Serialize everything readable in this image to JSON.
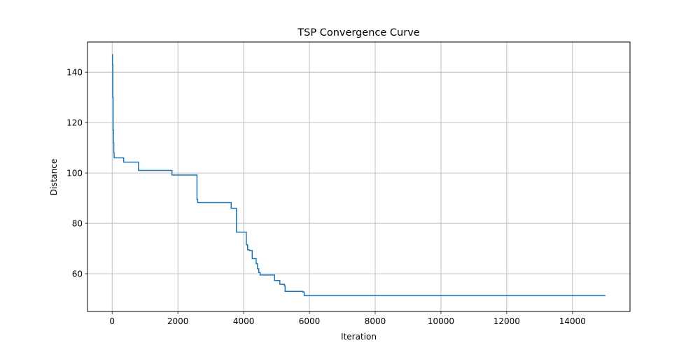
{
  "chart_data": {
    "type": "line",
    "title": "TSP Convergence Curve",
    "xlabel": "Iteration",
    "ylabel": "Distance",
    "xlim": [
      -750,
      15750
    ],
    "ylim": [
      45,
      152
    ],
    "xticks": [
      0,
      2000,
      4000,
      6000,
      8000,
      10000,
      12000,
      14000
    ],
    "yticks": [
      60,
      80,
      100,
      120,
      140
    ],
    "grid": true,
    "legend": "none",
    "line_color": "#1f77b4",
    "series": [
      {
        "step": "post",
        "x": [
          0,
          10,
          20,
          30,
          40,
          50,
          60,
          350,
          800,
          1820,
          2580,
          2600,
          3620,
          3780,
          4080,
          4120,
          4180,
          4260,
          4380,
          4420,
          4460,
          4500,
          4940,
          5100,
          5240,
          5260,
          5800,
          5840,
          15000
        ],
        "y": [
          147,
          143,
          130,
          117,
          112,
          108,
          106,
          104.3,
          101,
          99.2,
          89.5,
          88.2,
          86,
          76.5,
          71.5,
          69.5,
          69.2,
          66,
          64,
          62,
          60.5,
          59.5,
          57.3,
          55.8,
          55.2,
          53,
          52.7,
          51.3,
          51.3
        ]
      }
    ]
  }
}
